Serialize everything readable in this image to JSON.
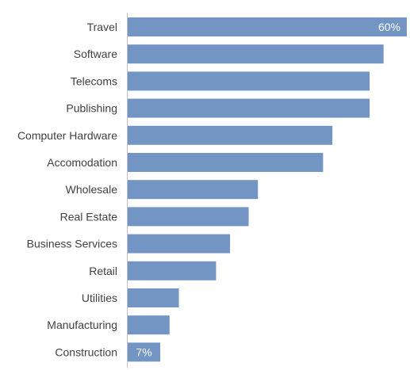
{
  "chart_data": {
    "type": "bar",
    "orientation": "horizontal",
    "categories": [
      "Travel",
      "Software",
      "Telecoms",
      "Publishing",
      "Computer Hardware",
      "Accomodation",
      "Wholesale",
      "Real Estate",
      "Business Services",
      "Retail",
      "Utilities",
      "Manufacturing",
      "Construction"
    ],
    "values": [
      60,
      55,
      52,
      52,
      44,
      42,
      28,
      26,
      22,
      19,
      11,
      9,
      7
    ],
    "data_labels": {
      "Travel": "60%",
      "Construction": "7%"
    },
    "unit": "%",
    "xlim": [
      0,
      60
    ],
    "grid": false,
    "title": "",
    "xlabel": "",
    "ylabel": "",
    "colors": {
      "bar": "#7295c4",
      "axis": "#bfbfbf",
      "label_text": "#404040",
      "data_label_text": "#ffffff"
    }
  }
}
